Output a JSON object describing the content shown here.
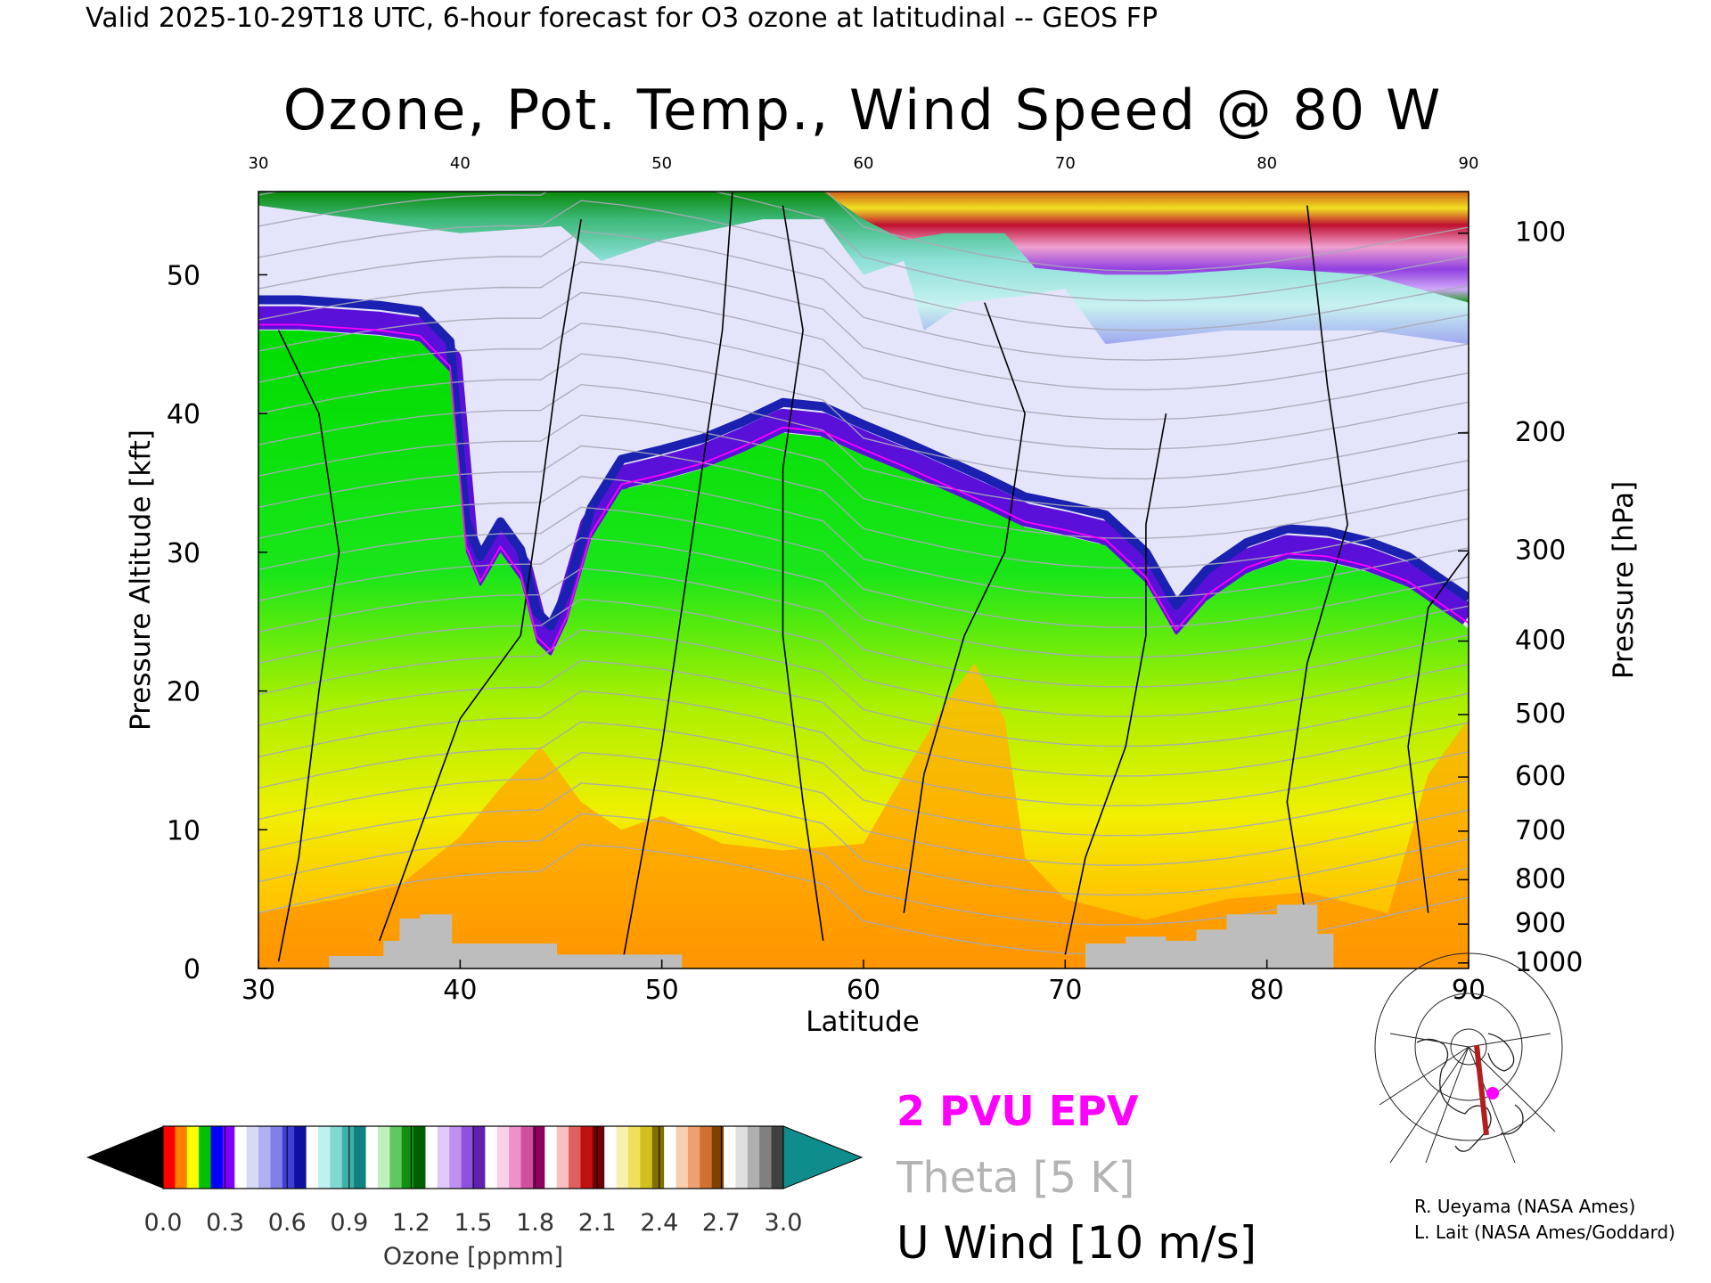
{
  "header": "Valid 2025-10-29T18 UTC, 6-hour forecast for O3 ozone at latitudinal -- GEOS FP",
  "chart_data": {
    "type": "heatmap",
    "title": "Ozone, Pot. Temp., Wind Speed @ 80 W",
    "xlabel": "Latitude",
    "ylabel": "Pressure Altitude [kft]",
    "y2label": "Pressure [hPa]",
    "xlim": [
      30,
      90
    ],
    "ylim": [
      0,
      56
    ],
    "x_ticks": [
      30,
      40,
      50,
      60,
      70,
      80,
      90
    ],
    "x_ticks_top": [
      30,
      40,
      50,
      60,
      70,
      80,
      90
    ],
    "y_ticks": [
      0,
      10,
      20,
      30,
      40,
      50
    ],
    "pressure_ticks": [
      {
        "label": "100",
        "kft": 53.0
      },
      {
        "label": "200",
        "kft": 38.6
      },
      {
        "label": "300",
        "kft": 30.1
      },
      {
        "label": "400",
        "kft": 23.6
      },
      {
        "label": "500",
        "kft": 18.3
      },
      {
        "label": "600",
        "kft": 13.8
      },
      {
        "label": "700",
        "kft": 9.9
      },
      {
        "label": "800",
        "kft": 6.4
      },
      {
        "label": "900",
        "kft": 3.2
      },
      {
        "label": "1000",
        "kft": 0.4
      }
    ],
    "tropopause_kft": [
      [
        30,
        46
      ],
      [
        32,
        46
      ],
      [
        34,
        45.8
      ],
      [
        36,
        45.6
      ],
      [
        38,
        45.2
      ],
      [
        39.5,
        43
      ],
      [
        40.3,
        30
      ],
      [
        41,
        27.5
      ],
      [
        42,
        30
      ],
      [
        43,
        28
      ],
      [
        43.8,
        23.5
      ],
      [
        44.5,
        22.5
      ],
      [
        45.3,
        25
      ],
      [
        46.5,
        31
      ],
      [
        48,
        34.5
      ],
      [
        50,
        35.2
      ],
      [
        52,
        36
      ],
      [
        54,
        37.2
      ],
      [
        56,
        38.6
      ],
      [
        58,
        38.3
      ],
      [
        60,
        37
      ],
      [
        62,
        35.8
      ],
      [
        64,
        34.5
      ],
      [
        66,
        33.2
      ],
      [
        68,
        31.8
      ],
      [
        70,
        31.2
      ],
      [
        72,
        30.5
      ],
      [
        74,
        27.8
      ],
      [
        75.5,
        24
      ],
      [
        77,
        26.5
      ],
      [
        79,
        28.5
      ],
      [
        81,
        29.5
      ],
      [
        83,
        29.3
      ],
      [
        85,
        28.6
      ],
      [
        87,
        27.5
      ],
      [
        89,
        25.5
      ],
      [
        90,
        24.5
      ]
    ],
    "stratosphere_top_kft": [
      [
        30,
        55
      ],
      [
        35,
        54
      ],
      [
        40,
        53
      ],
      [
        45,
        53.5
      ],
      [
        47,
        51
      ],
      [
        50,
        52.5
      ],
      [
        55,
        54
      ],
      [
        58,
        54
      ],
      [
        60,
        50
      ],
      [
        62,
        51
      ],
      [
        63,
        46
      ],
      [
        65,
        48
      ],
      [
        68,
        48.5
      ],
      [
        70,
        49
      ],
      [
        72,
        45
      ],
      [
        75,
        45.5
      ],
      [
        78,
        46
      ],
      [
        80,
        46
      ],
      [
        85,
        46
      ],
      [
        90,
        45
      ]
    ],
    "ozone_high_contour_kft": [
      [
        55,
        56
      ],
      [
        58,
        56
      ],
      [
        60,
        54
      ],
      [
        62,
        52.5
      ],
      [
        64,
        53
      ],
      [
        67,
        53
      ],
      [
        68.5,
        50.5
      ],
      [
        72,
        50
      ],
      [
        75,
        50
      ],
      [
        80,
        50.5
      ],
      [
        85,
        50
      ],
      [
        90,
        48
      ]
    ],
    "surface_kft": [
      [
        33.5,
        0
      ],
      [
        33.5,
        0.9
      ],
      [
        36.2,
        0.9
      ],
      [
        36.2,
        2
      ],
      [
        37,
        2
      ],
      [
        37,
        3.6
      ],
      [
        38,
        3.6
      ],
      [
        38,
        3.9
      ],
      [
        39.6,
        3.9
      ],
      [
        39.6,
        1.8
      ],
      [
        44.8,
        1.8
      ],
      [
        44.8,
        1.0
      ],
      [
        51,
        1.0
      ],
      [
        51,
        0
      ],
      [
        71,
        0
      ],
      [
        71,
        1.8
      ],
      [
        73,
        1.8
      ],
      [
        73,
        2.3
      ],
      [
        75,
        2.3
      ],
      [
        75,
        2.0
      ],
      [
        76.5,
        2.0
      ],
      [
        76.5,
        2.8
      ],
      [
        78,
        2.8
      ],
      [
        78,
        3.9
      ],
      [
        80.5,
        3.9
      ],
      [
        80.5,
        4.6
      ],
      [
        82.5,
        4.6
      ],
      [
        82.5,
        2.5
      ],
      [
        83.3,
        2.5
      ],
      [
        83.3,
        0
      ]
    ],
    "colorbar": {
      "label": "Ozone [ppmm]",
      "ticks": [
        "0.0",
        "0.3",
        "0.6",
        "0.9",
        "1.2",
        "1.5",
        "1.8",
        "2.1",
        "2.4",
        "2.7",
        "3.0"
      ],
      "min_color": "#000000",
      "max_color": "#0f8d8d"
    },
    "legend": [
      {
        "label": "2 PVU EPV",
        "color": "#ff00ff"
      },
      {
        "label": "Theta [5 K]",
        "color": "#b4b4b4"
      },
      {
        "label": "U Wind [10 m/s]",
        "color": "#000000"
      }
    ]
  },
  "credits": [
    "R. Ueyama (NASA Ames)",
    "L. Lait (NASA Ames/Goddard)"
  ]
}
